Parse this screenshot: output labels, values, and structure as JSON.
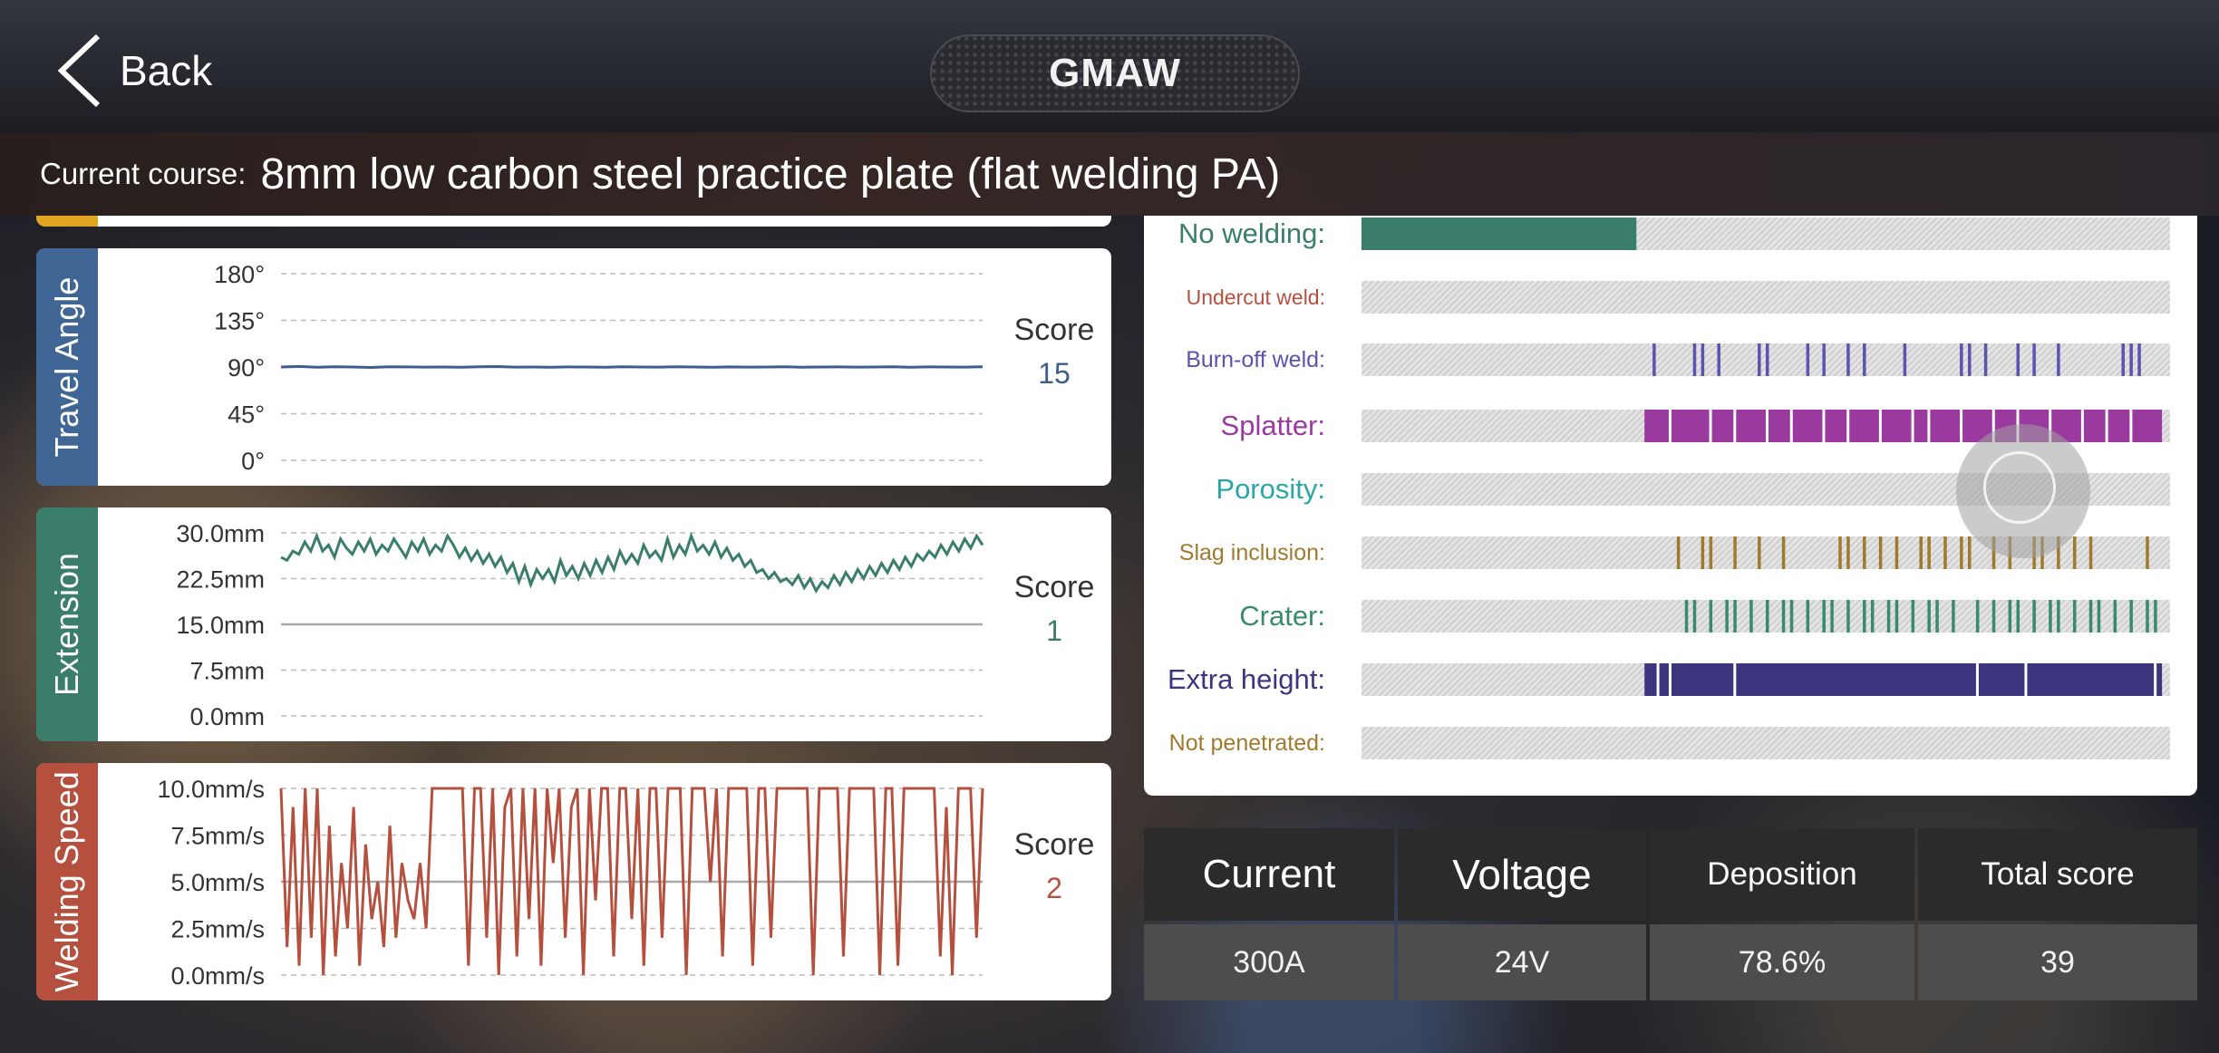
{
  "header": {
    "back_label": "Back",
    "mode": "GMAW"
  },
  "course": {
    "label": "Current course:",
    "value": "8mm low carbon steel practice plate (flat welding PA)"
  },
  "panels": [
    {
      "id": "travel-angle",
      "title": "Travel Angle",
      "color": "#3f6694",
      "line_color": "#3d5d8c",
      "ticks": [
        "180°",
        "135°",
        "90°",
        "45°",
        "0°"
      ],
      "tick_values": [
        180,
        135,
        90,
        45,
        0
      ],
      "ylim": [
        0,
        180
      ],
      "solid_tick_index": -1,
      "score_label": "Score",
      "score": "15",
      "score_color": "#3d5d8c",
      "series": [
        90,
        90.5,
        89.8,
        90.2,
        90,
        89.6,
        90.3,
        90.1,
        89.9,
        90,
        89.7,
        90.2,
        90.4,
        89.9,
        90,
        89.8,
        90.1,
        90,
        89.7,
        90.2,
        90,
        89.9,
        90.3,
        90,
        89.8,
        90.1,
        89.9,
        90,
        90.2,
        89.8,
        90,
        90.1,
        89.9,
        90,
        90.2,
        89.8,
        90.1,
        90,
        89.9,
        90.2
      ]
    },
    {
      "id": "extension",
      "title": "Extension",
      "color": "#3a7d6b",
      "line_color": "#3a7d6b",
      "ticks": [
        "30.0mm",
        "22.5mm",
        "15.0mm",
        "7.5mm",
        "0.0mm"
      ],
      "tick_values": [
        30,
        22.5,
        15,
        7.5,
        0
      ],
      "ylim": [
        0,
        30
      ],
      "solid_tick_index": 2,
      "score_label": "Score",
      "score": "1",
      "score_color": "#3a7d6b",
      "series": [
        26,
        25.5,
        27,
        26.5,
        28.5,
        27,
        29.5,
        27,
        28,
        26,
        29,
        27.5,
        26.5,
        28.5,
        27,
        29,
        26.5,
        28,
        27,
        29,
        27.5,
        26,
        28.5,
        27,
        29,
        26.5,
        28,
        27,
        29.5,
        28,
        26,
        27.5,
        25.5,
        27,
        25,
        26.5,
        24.5,
        26,
        23.5,
        25,
        22,
        24.5,
        21.5,
        24,
        22.5,
        24,
        22,
        25.5,
        23,
        24.5,
        22.5,
        25,
        23,
        25.5,
        23.5,
        26,
        24,
        27,
        25,
        26.5,
        25,
        28,
        26,
        27,
        25.5,
        29,
        26,
        28,
        26.5,
        29.5,
        27,
        28,
        26.5,
        28.5,
        26,
        27.5,
        25.5,
        26.5,
        24.5,
        25.5,
        23.5,
        24,
        22.5,
        23.5,
        22,
        22.5,
        21.5,
        23,
        21,
        22.5,
        20.5,
        22,
        21,
        23,
        21.5,
        23.5,
        22,
        24,
        22.5,
        24.5,
        23,
        25,
        23.5,
        25.5,
        24,
        26,
        24.5,
        26.5,
        25.5,
        27,
        26,
        28,
        26.5,
        28.5,
        27,
        29,
        27.5,
        29.5,
        28
      ]
    },
    {
      "id": "welding-speed",
      "title": "Welding Speed",
      "color": "#b5503f",
      "line_color": "#b5503f",
      "ticks": [
        "10.0mm/s",
        "7.5mm/s",
        "5.0mm/s",
        "2.5mm/s",
        "0.0mm/s"
      ],
      "tick_values": [
        10,
        7.5,
        5,
        2.5,
        0
      ],
      "ylim": [
        0,
        10
      ],
      "solid_tick_index": 2,
      "score_label": "Score",
      "score": "2",
      "score_color": "#b5503f",
      "series": [
        10,
        1.5,
        9,
        0.5,
        10,
        2,
        10,
        0,
        8,
        1,
        6,
        2.5,
        9,
        0.5,
        7,
        3,
        5,
        1.5,
        8,
        2,
        6,
        4,
        3,
        6,
        2.5,
        10,
        10,
        10,
        10,
        10,
        10,
        0.5,
        10,
        10,
        2,
        10,
        0,
        9,
        10,
        1,
        10,
        3,
        10,
        0.5,
        10,
        6,
        10,
        2,
        9,
        10,
        0,
        10,
        4,
        10,
        10,
        1,
        10,
        10,
        3,
        10,
        0.5,
        10,
        10,
        2,
        10,
        10,
        10,
        0,
        10,
        10,
        10,
        5,
        10,
        1,
        10,
        10,
        10,
        10,
        0.5,
        10,
        10,
        2,
        10,
        10,
        10,
        10,
        10,
        10,
        0,
        10,
        10,
        10,
        10,
        1,
        10,
        10,
        10,
        10,
        10,
        0,
        10,
        10,
        0.5,
        10,
        10,
        10,
        10,
        10,
        10,
        1,
        9,
        0,
        10,
        10,
        10,
        2,
        10
      ]
    }
  ],
  "defects": [
    {
      "label": "No welding:",
      "color": "#3a7d6b",
      "font_size": 31,
      "fill": [
        [
          0,
          0.34
        ]
      ]
    },
    {
      "label": "Undercut weld:",
      "color": "#b5503f",
      "font_size": 23,
      "fill": []
    },
    {
      "label": "Burn-off weld:",
      "color": "#5c52b0",
      "font_size": 25,
      "ticks": [
        0.36,
        0.41,
        0.42,
        0.44,
        0.49,
        0.5,
        0.55,
        0.57,
        0.6,
        0.62,
        0.67,
        0.74,
        0.75,
        0.77,
        0.81,
        0.83,
        0.86,
        0.94,
        0.95,
        0.96
      ]
    },
    {
      "label": "Splatter:",
      "color": "#9a3a9e",
      "font_size": 31,
      "fill": [
        [
          0.35,
          0.99
        ]
      ],
      "gaps": [
        0.38,
        0.43,
        0.46,
        0.5,
        0.53,
        0.57,
        0.6,
        0.64,
        0.68,
        0.7,
        0.74,
        0.78,
        0.81,
        0.85,
        0.89,
        0.92,
        0.95
      ]
    },
    {
      "label": "Porosity:",
      "color": "#2aa6a8",
      "font_size": 31,
      "fill": []
    },
    {
      "label": "Slag inclusion:",
      "color": "#a07a2c",
      "font_size": 25,
      "ticks": [
        0.39,
        0.42,
        0.43,
        0.46,
        0.49,
        0.52,
        0.59,
        0.6,
        0.62,
        0.64,
        0.66,
        0.69,
        0.7,
        0.72,
        0.74,
        0.75,
        0.78,
        0.8,
        0.83,
        0.84,
        0.86,
        0.88,
        0.9,
        0.97
      ]
    },
    {
      "label": "Crater:",
      "color": "#3a8a6e",
      "font_size": 31,
      "ticks": [
        0.4,
        0.41,
        0.43,
        0.45,
        0.46,
        0.48,
        0.5,
        0.52,
        0.53,
        0.55,
        0.57,
        0.58,
        0.6,
        0.62,
        0.63,
        0.65,
        0.66,
        0.68,
        0.7,
        0.71,
        0.73,
        0.76,
        0.78,
        0.8,
        0.81,
        0.83,
        0.85,
        0.86,
        0.88,
        0.9,
        0.91,
        0.93,
        0.95,
        0.97,
        0.98
      ]
    },
    {
      "label": "Extra height:",
      "color": "#3d367e",
      "font_size": 31,
      "fill": [
        [
          0.35,
          0.99
        ]
      ],
      "gaps": [
        0.365,
        0.38,
        0.46,
        0.76,
        0.82,
        0.98
      ]
    },
    {
      "label": "Not penetrated:",
      "color": "#a07a2c",
      "font_size": 25,
      "fill": []
    }
  ],
  "stats": [
    {
      "label": "Current",
      "value": "300A",
      "font_size": 44
    },
    {
      "label": "Voltage",
      "value": "24V",
      "font_size": 46
    },
    {
      "label": "Deposition",
      "value": "78.6%",
      "font_size": 35
    },
    {
      "label": "Total score",
      "value": "39",
      "font_size": 35
    }
  ]
}
